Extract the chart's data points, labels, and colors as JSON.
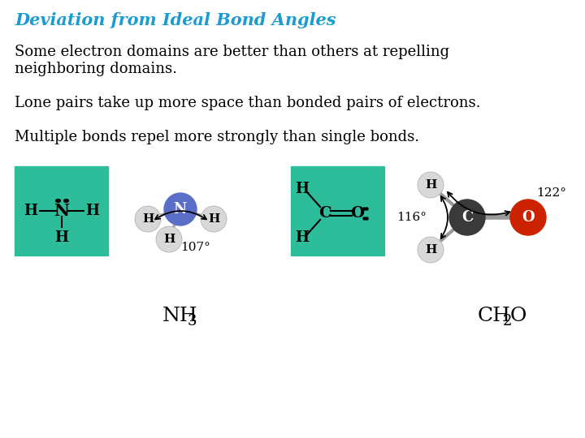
{
  "title": "Deviation from Ideal Bond Angles",
  "title_color": "#1B9BD1",
  "title_fontsize": 15,
  "body_fontsize": 13,
  "body_color": "#000000",
  "background_color": "#FFFFFF",
  "line1": "Some electron domains are better than others at repelling",
  "line2": "neighboring domains.",
  "line3": "Lone pairs take up more space than bonded pairs of electrons.",
  "line4": "Multiple bonds repel more strongly than single bonds.",
  "teal_color": "#2EBD9B",
  "angle_107": "107°",
  "angle_116": "116°",
  "angle_122": "122°"
}
